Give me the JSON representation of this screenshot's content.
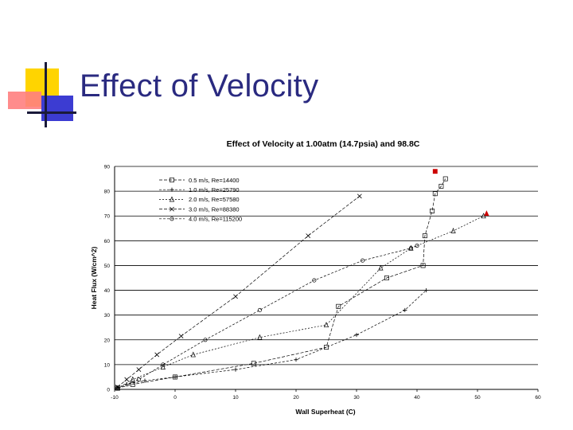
{
  "slide": {
    "title": "Effect of Velocity"
  },
  "chart_data": {
    "type": "scatter",
    "title": "Effect of Velocity at 1.00atm (14.7psia) and 98.8C",
    "xlabel": "Wall Superheat (C)",
    "ylabel": "Heat Flux (W/cm^2)",
    "xlim": [
      -10,
      60
    ],
    "ylim": [
      0,
      90
    ],
    "xticks": [
      -10,
      0,
      10,
      20,
      30,
      40,
      50,
      60
    ],
    "yticks": [
      0,
      10,
      20,
      30,
      40,
      50,
      60,
      70,
      80,
      90
    ],
    "xtick_labels": [
      "-10",
      "0",
      "10",
      "20",
      "30",
      "40",
      "50",
      "60"
    ],
    "ytick_labels": [
      "0",
      "10",
      "20",
      "30",
      "40",
      "50",
      "60",
      "70",
      "80",
      "90"
    ],
    "legend_position": "top-left",
    "series": [
      {
        "name": "0.5 m/s, Re=14400",
        "x": [
          -9.5,
          -7,
          0,
          13,
          25,
          27,
          35,
          41,
          41.3,
          42.5,
          43,
          44,
          44.7
        ],
        "y": [
          0.5,
          2,
          5,
          10.5,
          17,
          33.5,
          45,
          50,
          62,
          72,
          79,
          82,
          85
        ]
      },
      {
        "name": "1.0 m/s, Re=25790",
        "x": [
          -9.5,
          -8,
          -5,
          0,
          10,
          20,
          30,
          38,
          41.5
        ],
        "y": [
          0.5,
          2,
          3.5,
          5,
          8,
          12,
          22,
          32,
          40
        ]
      },
      {
        "name": "2.0 m/s, Re=57580",
        "x": [
          -9.5,
          -7,
          -2,
          3,
          14,
          25,
          34,
          39,
          46,
          51
        ],
        "y": [
          0.5,
          4,
          9,
          14,
          21,
          26,
          49,
          57,
          64,
          70
        ]
      },
      {
        "name": "3.0 m/s, Re=88380",
        "x": [
          -9.5,
          -8,
          -6,
          -3,
          1,
          10,
          22,
          30.5
        ],
        "y": [
          1,
          4,
          8,
          14,
          21.5,
          37.5,
          62,
          78
        ]
      },
      {
        "name": "4.0 m/s, Re=115200",
        "x": [
          -9.5,
          -6,
          -2,
          5,
          14,
          23,
          31,
          39,
          40
        ],
        "y": [
          0.5,
          4,
          10,
          20,
          32,
          44,
          52,
          57,
          58
        ]
      }
    ],
    "markers": [
      {
        "x": 43,
        "y": 88,
        "color": "#cc0000",
        "shape": "square"
      },
      {
        "x": 51.5,
        "y": 71,
        "color": "#cc0000",
        "shape": "triangle"
      }
    ]
  }
}
